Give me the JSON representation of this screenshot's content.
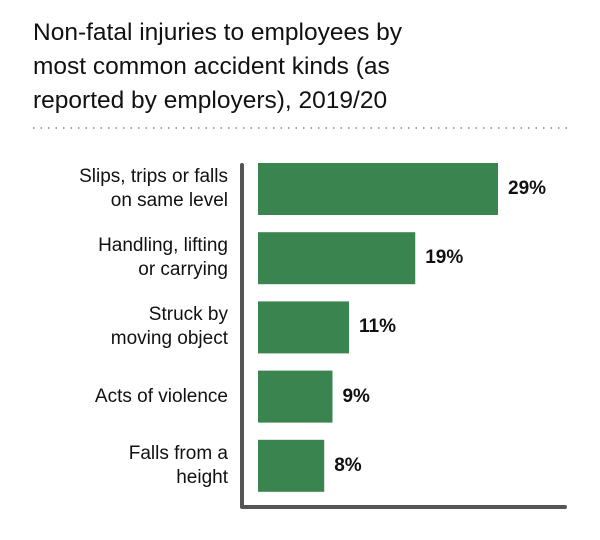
{
  "chart_data": {
    "type": "bar",
    "orientation": "horizontal",
    "title": "Non-fatal injuries to employees by\nmost common accident kinds (as\nreported by employers), 2019/20",
    "categories": [
      "Slips, trips or falls\non same level",
      "Handling, lifting\nor carrying",
      "Struck by\nmoving object",
      "Acts of violence",
      "Falls from a\nheight"
    ],
    "values": [
      29,
      19,
      11,
      9,
      8
    ],
    "value_labels": [
      "29%",
      "19%",
      "11%",
      "9%",
      "8%"
    ],
    "color": "#3a844f"
  }
}
